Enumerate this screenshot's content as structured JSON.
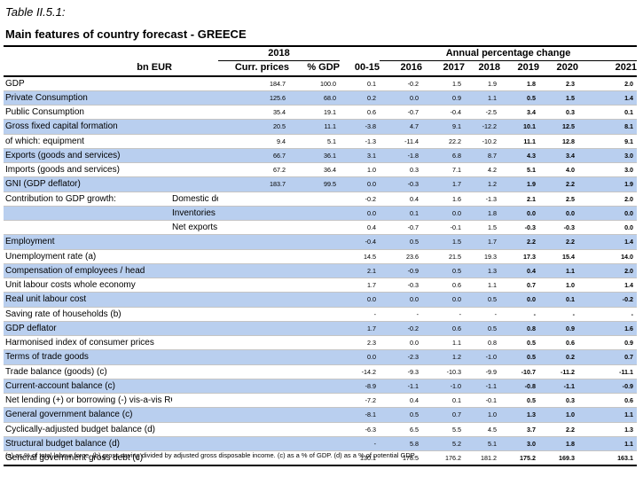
{
  "caption": "Table II.5.1:",
  "title": "Main features of country forecast - GREECE",
  "header": {
    "year_group": "2018",
    "annual_change": "Annual percentage change",
    "col_unit": "bn EUR",
    "col_curr": "Curr. prices",
    "col_gdp": "% GDP",
    "years": [
      "00-15",
      "2016",
      "2017",
      "2018",
      "2019",
      "2020",
      "2021"
    ]
  },
  "rows": [
    {
      "label": "GDP",
      "sub": "",
      "blue": false,
      "curr": "184.7",
      "pct": "100.0",
      "v": [
        "0.1",
        "-0.2",
        "1.5",
        "1.9",
        "1.8",
        "2.3",
        "2.0"
      ]
    },
    {
      "label": "Private Consumption",
      "sub": "",
      "blue": true,
      "curr": "125.6",
      "pct": "68.0",
      "v": [
        "0.2",
        "0.0",
        "0.9",
        "1.1",
        "0.5",
        "1.5",
        "1.4"
      ]
    },
    {
      "label": "Public Consumption",
      "sub": "",
      "blue": false,
      "curr": "35.4",
      "pct": "19.1",
      "v": [
        "0.6",
        "-0.7",
        "-0.4",
        "-2.5",
        "3.4",
        "0.3",
        "0.1"
      ]
    },
    {
      "label": "Gross fixed capital formation",
      "sub": "",
      "blue": true,
      "curr": "20.5",
      "pct": "11.1",
      "v": [
        "-3.8",
        "4.7",
        "9.1",
        "-12.2",
        "10.1",
        "12.5",
        "8.1"
      ]
    },
    {
      "label": "of which: equipment",
      "sub": "",
      "blue": false,
      "curr": "9.4",
      "pct": "5.1",
      "v": [
        "-1.3",
        "-11.4",
        "22.2",
        "-10.2",
        "11.1",
        "12.8",
        "9.1"
      ]
    },
    {
      "label": "Exports (goods and services)",
      "sub": "",
      "blue": true,
      "curr": "66.7",
      "pct": "36.1",
      "v": [
        "3.1",
        "-1.8",
        "6.8",
        "8.7",
        "4.3",
        "3.4",
        "3.0"
      ]
    },
    {
      "label": "Imports (goods and services)",
      "sub": "",
      "blue": false,
      "curr": "67.2",
      "pct": "36.4",
      "v": [
        "1.0",
        "0.3",
        "7.1",
        "4.2",
        "5.1",
        "4.0",
        "3.0"
      ]
    },
    {
      "label": "GNI (GDP deflator)",
      "sub": "",
      "blue": true,
      "curr": "183.7",
      "pct": "99.5",
      "v": [
        "0.0",
        "-0.3",
        "1.7",
        "1.2",
        "1.9",
        "2.2",
        "1.9"
      ]
    },
    {
      "label": "Contribution to GDP growth:",
      "sub": "Domestic demand",
      "blue": false,
      "curr": "",
      "pct": "",
      "v": [
        "-0.2",
        "0.4",
        "1.6",
        "-1.3",
        "2.1",
        "2.5",
        "2.0"
      ]
    },
    {
      "label": "",
      "sub": "Inventories",
      "blue": true,
      "curr": "",
      "pct": "",
      "v": [
        "0.0",
        "0.1",
        "0.0",
        "1.8",
        "0.0",
        "0.0",
        "0.0"
      ]
    },
    {
      "label": "",
      "sub": "Net exports",
      "blue": false,
      "curr": "",
      "pct": "",
      "v": [
        "0.4",
        "-0.7",
        "-0.1",
        "1.5",
        "-0.3",
        "-0.3",
        "0.0"
      ]
    },
    {
      "label": "Employment",
      "sub": "",
      "blue": true,
      "curr": "",
      "pct": "",
      "v": [
        "-0.4",
        "0.5",
        "1.5",
        "1.7",
        "2.2",
        "2.2",
        "1.4"
      ]
    },
    {
      "label": "Unemployment rate (a)",
      "sub": "",
      "blue": false,
      "curr": "",
      "pct": "",
      "v": [
        "14.5",
        "23.6",
        "21.5",
        "19.3",
        "17.3",
        "15.4",
        "14.0"
      ]
    },
    {
      "label": "Compensation of employees / head",
      "sub": "",
      "blue": true,
      "curr": "",
      "pct": "",
      "v": [
        "2.1",
        "-0.9",
        "0.5",
        "1.3",
        "0.4",
        "1.1",
        "2.0"
      ]
    },
    {
      "label": "Unit labour costs whole economy",
      "sub": "",
      "blue": false,
      "curr": "",
      "pct": "",
      "v": [
        "1.7",
        "-0.3",
        "0.6",
        "1.1",
        "0.7",
        "1.0",
        "1.4"
      ]
    },
    {
      "label": "Real unit labour cost",
      "sub": "",
      "blue": true,
      "curr": "",
      "pct": "",
      "v": [
        "0.0",
        "0.0",
        "0.0",
        "0.5",
        "0.0",
        "0.1",
        "-0.2"
      ]
    },
    {
      "label": "Saving rate of households (b)",
      "sub": "",
      "blue": false,
      "curr": "",
      "pct": "",
      "v": [
        "-",
        "-",
        "-",
        "-",
        "-",
        "-",
        "-"
      ]
    },
    {
      "label": "GDP deflator",
      "sub": "",
      "blue": true,
      "curr": "",
      "pct": "",
      "v": [
        "1.7",
        "-0.2",
        "0.6",
        "0.5",
        "0.8",
        "0.9",
        "1.6"
      ]
    },
    {
      "label": "Harmonised index of consumer prices",
      "sub": "",
      "blue": false,
      "curr": "",
      "pct": "",
      "v": [
        "2.3",
        "0.0",
        "1.1",
        "0.8",
        "0.5",
        "0.6",
        "0.9"
      ]
    },
    {
      "label": "Terms of trade goods",
      "sub": "",
      "blue": true,
      "curr": "",
      "pct": "",
      "v": [
        "0.0",
        "-2.3",
        "1.2",
        "-1.0",
        "0.5",
        "0.2",
        "0.7"
      ]
    },
    {
      "label": "Trade balance (goods) (c)",
      "sub": "",
      "blue": false,
      "curr": "",
      "pct": "",
      "v": [
        "-14.2",
        "-9.3",
        "-10.3",
        "-9.9",
        "-10.7",
        "-11.2",
        "-11.1"
      ]
    },
    {
      "label": "Current-account balance (c)",
      "sub": "",
      "blue": true,
      "curr": "",
      "pct": "",
      "v": [
        "-8.9",
        "-1.1",
        "-1.0",
        "-1.1",
        "-0.8",
        "-1.1",
        "-0.9"
      ]
    },
    {
      "label": "Net lending (+) or borrowing (-) vis-a-vis ROW (c)",
      "sub": "",
      "blue": false,
      "curr": "",
      "pct": "",
      "v": [
        "-7.2",
        "0.4",
        "0.1",
        "-0.1",
        "0.5",
        "0.3",
        "0.6"
      ]
    },
    {
      "label": "General government balance (c)",
      "sub": "",
      "blue": true,
      "curr": "",
      "pct": "",
      "v": [
        "-8.1",
        "0.5",
        "0.7",
        "1.0",
        "1.3",
        "1.0",
        "1.1"
      ]
    },
    {
      "label": "Cyclically-adjusted budget balance (d)",
      "sub": "",
      "blue": false,
      "curr": "",
      "pct": "",
      "v": [
        "-6.3",
        "6.5",
        "5.5",
        "4.5",
        "3.7",
        "2.2",
        "1.3"
      ]
    },
    {
      "label": "Structural budget balance (d)",
      "sub": "",
      "blue": true,
      "curr": "",
      "pct": "",
      "v": [
        "-",
        "5.8",
        "5.2",
        "5.1",
        "3.0",
        "1.8",
        "1.1"
      ]
    },
    {
      "label": "General government gross debt (c)",
      "sub": "",
      "blue": false,
      "curr": "",
      "pct": "",
      "v": [
        "130.1",
        "178.5",
        "176.2",
        "181.2",
        "175.2",
        "169.3",
        "163.1"
      ]
    }
  ],
  "footnote": "(a) as % of total labour force. (b) gross saving divided by adjusted gross disposable income. (c) as a % of GDP. (d) as a % of potential GDP.",
  "colors": {
    "band": "#b9cfef",
    "rule": "#000000"
  }
}
